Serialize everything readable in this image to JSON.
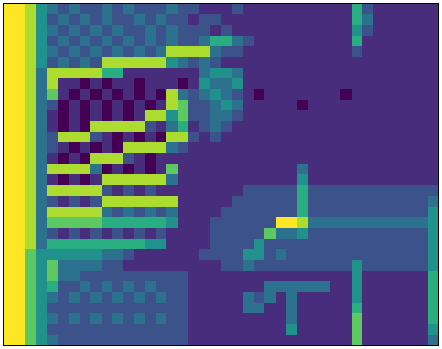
{
  "chart_data": {
    "type": "heatmap",
    "tick_labels": false,
    "cells": [
      [
        9,
        9,
        8,
        5,
        4,
        3,
        4,
        3,
        3,
        4,
        3,
        4,
        3,
        3,
        3,
        4,
        3,
        3,
        2,
        2,
        2,
        3,
        2,
        2,
        2,
        2,
        2,
        2,
        2,
        2,
        2,
        2,
        6,
        3,
        2,
        2,
        2,
        2,
        2,
        2
      ],
      [
        9,
        9,
        8,
        5,
        3,
        4,
        3,
        4,
        3,
        4,
        3,
        3,
        4,
        3,
        4,
        3,
        3,
        2,
        3,
        3,
        2,
        2,
        2,
        2,
        2,
        2,
        2,
        2,
        2,
        2,
        2,
        2,
        6,
        4,
        2,
        2,
        2,
        2,
        2,
        2
      ],
      [
        9,
        9,
        8,
        5,
        4,
        3,
        4,
        3,
        4,
        3,
        4,
        3,
        3,
        4,
        3,
        4,
        3,
        3,
        3,
        2,
        3,
        2,
        2,
        2,
        2,
        2,
        2,
        2,
        2,
        2,
        2,
        2,
        5,
        3,
        2,
        2,
        2,
        2,
        2,
        2
      ],
      [
        9,
        9,
        8,
        5,
        3,
        4,
        3,
        4,
        3,
        4,
        3,
        4,
        3,
        4,
        3,
        4,
        3,
        3,
        4,
        6,
        6,
        4,
        3,
        2,
        2,
        2,
        2,
        2,
        2,
        2,
        2,
        2,
        6,
        2,
        2,
        2,
        2,
        2,
        2,
        2
      ],
      [
        9,
        9,
        8,
        5,
        4,
        3,
        4,
        3,
        4,
        3,
        4,
        3,
        4,
        3,
        4,
        8,
        8,
        8,
        8,
        4,
        3,
        3,
        2,
        2,
        2,
        2,
        2,
        2,
        2,
        2,
        2,
        2,
        3,
        2,
        2,
        2,
        2,
        2,
        2,
        2
      ],
      [
        9,
        9,
        8,
        5,
        3,
        4,
        3,
        4,
        3,
        8,
        8,
        8,
        8,
        8,
        8,
        5,
        4,
        3,
        4,
        3,
        2,
        2,
        2,
        2,
        2,
        2,
        2,
        2,
        2,
        2,
        2,
        2,
        2,
        2,
        2,
        2,
        2,
        2,
        2,
        2
      ],
      [
        9,
        9,
        8,
        4,
        8,
        8,
        8,
        8,
        8,
        6,
        6,
        2,
        2,
        2,
        2,
        2,
        2,
        2,
        4,
        5,
        5,
        4,
        2,
        2,
        2,
        2,
        2,
        2,
        2,
        2,
        2,
        2,
        2,
        2,
        2,
        2,
        2,
        2,
        2,
        2
      ],
      [
        9,
        9,
        8,
        4,
        8,
        2,
        2,
        1,
        2,
        1,
        2,
        2,
        1,
        2,
        2,
        2,
        1,
        2,
        5,
        4,
        4,
        5,
        2,
        2,
        2,
        2,
        2,
        2,
        2,
        2,
        2,
        2,
        2,
        2,
        2,
        2,
        2,
        2,
        2,
        2
      ],
      [
        9,
        9,
        8,
        4,
        7,
        2,
        1,
        2,
        1,
        2,
        1,
        2,
        1,
        2,
        1,
        8,
        4,
        3,
        4,
        5,
        4,
        3,
        2,
        1,
        2,
        2,
        2,
        2,
        2,
        2,
        2,
        1,
        2,
        2,
        2,
        2,
        2,
        2,
        2,
        2
      ],
      [
        9,
        9,
        8,
        4,
        3,
        1,
        2,
        1,
        2,
        1,
        2,
        1,
        2,
        1,
        2,
        8,
        7,
        3,
        3,
        4,
        5,
        4,
        2,
        2,
        2,
        2,
        2,
        1,
        2,
        2,
        2,
        2,
        2,
        2,
        2,
        2,
        2,
        2,
        2,
        2
      ],
      [
        9,
        9,
        8,
        4,
        2,
        1,
        2,
        1,
        2,
        1,
        2,
        1,
        2,
        8,
        8,
        5,
        7,
        3,
        3,
        4,
        4,
        3,
        2,
        2,
        2,
        2,
        2,
        2,
        2,
        2,
        2,
        2,
        2,
        2,
        2,
        2,
        2,
        2,
        2,
        2
      ],
      [
        9,
        9,
        8,
        4,
        2,
        1,
        2,
        1,
        8,
        8,
        8,
        8,
        8,
        3,
        2,
        4,
        6,
        2,
        3,
        4,
        3,
        2,
        2,
        2,
        2,
        2,
        2,
        2,
        2,
        2,
        2,
        2,
        2,
        2,
        2,
        2,
        2,
        2,
        2,
        2
      ],
      [
        9,
        9,
        8,
        4,
        3,
        8,
        8,
        8,
        3,
        2,
        1,
        2,
        1,
        2,
        1,
        8,
        8,
        3,
        2,
        3,
        2,
        2,
        2,
        2,
        2,
        2,
        2,
        2,
        2,
        2,
        2,
        2,
        2,
        2,
        2,
        2,
        2,
        2,
        2,
        2
      ],
      [
        9,
        9,
        8,
        4,
        3,
        2,
        1,
        2,
        1,
        2,
        1,
        8,
        8,
        8,
        8,
        4,
        3,
        2,
        2,
        2,
        2,
        2,
        2,
        2,
        2,
        2,
        2,
        2,
        2,
        2,
        2,
        2,
        2,
        2,
        2,
        2,
        2,
        2,
        2,
        2
      ],
      [
        9,
        9,
        8,
        4,
        2,
        1,
        2,
        1,
        8,
        8,
        8,
        3,
        2,
        1,
        2,
        2,
        2,
        2,
        2,
        2,
        2,
        2,
        2,
        2,
        2,
        2,
        2,
        2,
        2,
        2,
        2,
        2,
        2,
        2,
        2,
        2,
        2,
        2,
        2,
        2
      ],
      [
        9,
        9,
        8,
        4,
        8,
        8,
        8,
        8,
        4,
        1,
        2,
        1,
        2,
        1,
        2,
        7,
        2,
        2,
        2,
        2,
        2,
        2,
        2,
        2,
        2,
        2,
        2,
        4,
        2,
        2,
        2,
        2,
        2,
        2,
        2,
        2,
        2,
        2,
        2,
        2
      ],
      [
        9,
        9,
        8,
        4,
        2,
        1,
        2,
        1,
        2,
        8,
        8,
        8,
        8,
        8,
        8,
        4,
        2,
        2,
        2,
        2,
        2,
        2,
        2,
        2,
        2,
        2,
        2,
        5,
        2,
        2,
        2,
        2,
        2,
        2,
        2,
        2,
        2,
        2,
        2,
        2
      ],
      [
        9,
        9,
        8,
        4,
        8,
        8,
        8,
        8,
        8,
        3,
        2,
        3,
        2,
        3,
        2,
        2,
        2,
        2,
        2,
        2,
        2,
        2,
        3,
        3,
        3,
        3,
        3,
        6,
        3,
        3,
        3,
        3,
        3,
        3,
        3,
        3,
        3,
        3,
        3,
        3
      ],
      [
        9,
        9,
        8,
        4,
        3,
        2,
        3,
        2,
        3,
        8,
        8,
        8,
        8,
        8,
        8,
        8,
        2,
        2,
        2,
        2,
        2,
        3,
        3,
        3,
        3,
        3,
        3,
        6,
        3,
        3,
        3,
        3,
        3,
        3,
        3,
        3,
        3,
        3,
        3,
        4
      ],
      [
        9,
        9,
        8,
        4,
        8,
        8,
        8,
        8,
        8,
        4,
        3,
        4,
        3,
        4,
        3,
        4,
        2,
        2,
        2,
        2,
        3,
        3,
        3,
        3,
        3,
        3,
        3,
        6,
        3,
        3,
        3,
        3,
        3,
        3,
        3,
        3,
        3,
        3,
        3,
        5
      ],
      [
        9,
        9,
        8,
        4,
        7,
        7,
        7,
        7,
        7,
        6,
        6,
        6,
        6,
        6,
        6,
        5,
        2,
        2,
        2,
        3,
        3,
        3,
        3,
        3,
        3,
        9,
        9,
        8,
        4,
        4,
        4,
        4,
        4,
        4,
        4,
        4,
        4,
        4,
        4,
        5
      ],
      [
        9,
        9,
        8,
        4,
        3,
        2,
        3,
        2,
        3,
        2,
        3,
        2,
        3,
        2,
        3,
        2,
        2,
        2,
        2,
        3,
        3,
        3,
        3,
        3,
        7,
        4,
        4,
        5,
        3,
        3,
        3,
        3,
        3,
        3,
        3,
        3,
        3,
        3,
        3,
        5
      ],
      [
        9,
        9,
        8,
        4,
        6,
        6,
        6,
        6,
        6,
        6,
        6,
        6,
        6,
        5,
        5,
        2,
        2,
        2,
        2,
        3,
        3,
        3,
        3,
        5,
        3,
        3,
        3,
        3,
        3,
        3,
        3,
        3,
        3,
        3,
        3,
        3,
        3,
        3,
        3,
        5
      ],
      [
        9,
        9,
        7,
        5,
        5,
        5,
        5,
        5,
        5,
        4,
        4,
        3,
        2,
        2,
        2,
        2,
        2,
        2,
        3,
        3,
        3,
        3,
        5,
        5,
        3,
        4,
        3,
        3,
        3,
        3,
        3,
        3,
        3,
        3,
        3,
        3,
        3,
        3,
        3,
        5
      ],
      [
        9,
        9,
        7,
        5,
        7,
        4,
        4,
        4,
        4,
        3,
        3,
        2,
        2,
        2,
        2,
        2,
        2,
        2,
        2,
        2,
        3,
        3,
        4,
        3,
        3,
        3,
        3,
        3,
        3,
        3,
        3,
        3,
        5,
        3,
        3,
        3,
        3,
        3,
        3,
        5
      ],
      [
        9,
        9,
        7,
        5,
        7,
        4,
        4,
        3,
        3,
        3,
        3,
        3,
        3,
        3,
        3,
        3,
        3,
        2,
        2,
        2,
        2,
        2,
        2,
        2,
        2,
        2,
        2,
        2,
        2,
        2,
        2,
        2,
        5,
        2,
        2,
        2,
        2,
        2,
        2,
        6
      ],
      [
        9,
        9,
        7,
        5,
        6,
        3,
        3,
        4,
        3,
        4,
        3,
        4,
        3,
        4,
        3,
        3,
        3,
        2,
        2,
        2,
        2,
        2,
        2,
        2,
        4,
        4,
        4,
        4,
        4,
        4,
        2,
        2,
        5,
        2,
        2,
        2,
        2,
        2,
        2,
        6
      ],
      [
        9,
        9,
        7,
        5,
        4,
        3,
        4,
        3,
        4,
        3,
        4,
        3,
        4,
        3,
        4,
        3,
        3,
        2,
        2,
        2,
        2,
        2,
        4,
        3,
        4,
        2,
        4,
        2,
        2,
        2,
        2,
        2,
        5,
        2,
        2,
        2,
        2,
        2,
        2,
        6
      ],
      [
        9,
        9,
        7,
        5,
        3,
        3,
        3,
        3,
        3,
        3,
        3,
        3,
        3,
        3,
        3,
        3,
        3,
        2,
        2,
        2,
        2,
        2,
        4,
        4,
        2,
        2,
        4,
        2,
        2,
        2,
        2,
        2,
        6,
        2,
        2,
        2,
        2,
        2,
        2,
        6
      ],
      [
        9,
        9,
        7,
        5,
        4,
        3,
        4,
        3,
        4,
        3,
        4,
        3,
        4,
        3,
        4,
        3,
        3,
        2,
        2,
        2,
        2,
        2,
        2,
        2,
        2,
        2,
        4,
        2,
        2,
        2,
        2,
        2,
        7,
        2,
        2,
        2,
        2,
        2,
        2,
        6
      ],
      [
        9,
        9,
        7,
        5,
        3,
        3,
        3,
        3,
        3,
        3,
        3,
        3,
        3,
        3,
        3,
        3,
        3,
        2,
        2,
        2,
        2,
        2,
        2,
        2,
        2,
        2,
        5,
        2,
        2,
        2,
        2,
        2,
        7,
        2,
        2,
        2,
        2,
        2,
        2,
        5
      ],
      [
        9,
        9,
        7,
        5,
        4,
        3,
        3,
        3,
        3,
        3,
        3,
        3,
        3,
        3,
        3,
        3,
        3,
        2,
        2,
        2,
        2,
        2,
        2,
        2,
        2,
        2,
        2,
        2,
        2,
        2,
        2,
        2,
        7,
        2,
        2,
        2,
        2,
        2,
        2,
        4
      ]
    ]
  }
}
